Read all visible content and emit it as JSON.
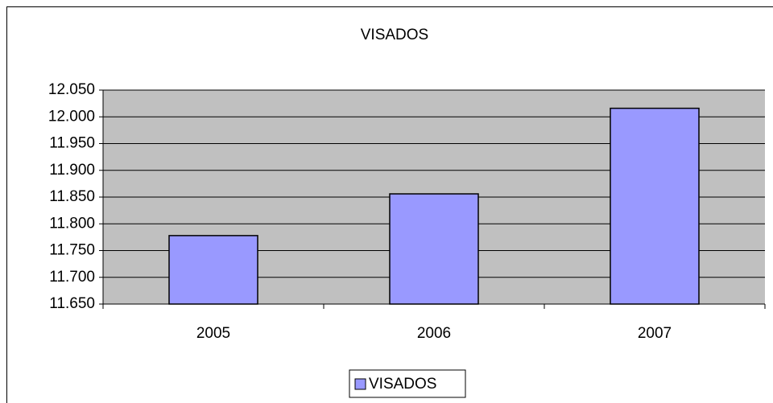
{
  "chart_data": {
    "type": "bar",
    "title": "VISADOS",
    "categories": [
      "2005",
      "2006",
      "2007"
    ],
    "series": [
      {
        "name": "VISADOS",
        "color": "#9999ff",
        "values": [
          11778,
          11856,
          12016
        ]
      }
    ],
    "ylim": [
      11650,
      12050
    ],
    "yticks": [
      {
        "value": 11650,
        "label": "11.650"
      },
      {
        "value": 11700,
        "label": "11.700"
      },
      {
        "value": 11750,
        "label": "11.750"
      },
      {
        "value": 11800,
        "label": "11.800"
      },
      {
        "value": 11850,
        "label": "11.850"
      },
      {
        "value": 11900,
        "label": "11.900"
      },
      {
        "value": 11950,
        "label": "11.950"
      },
      {
        "value": 12000,
        "label": "12.000"
      },
      {
        "value": 12050,
        "label": "12.050"
      }
    ],
    "grid": true,
    "legend": "bottom"
  }
}
